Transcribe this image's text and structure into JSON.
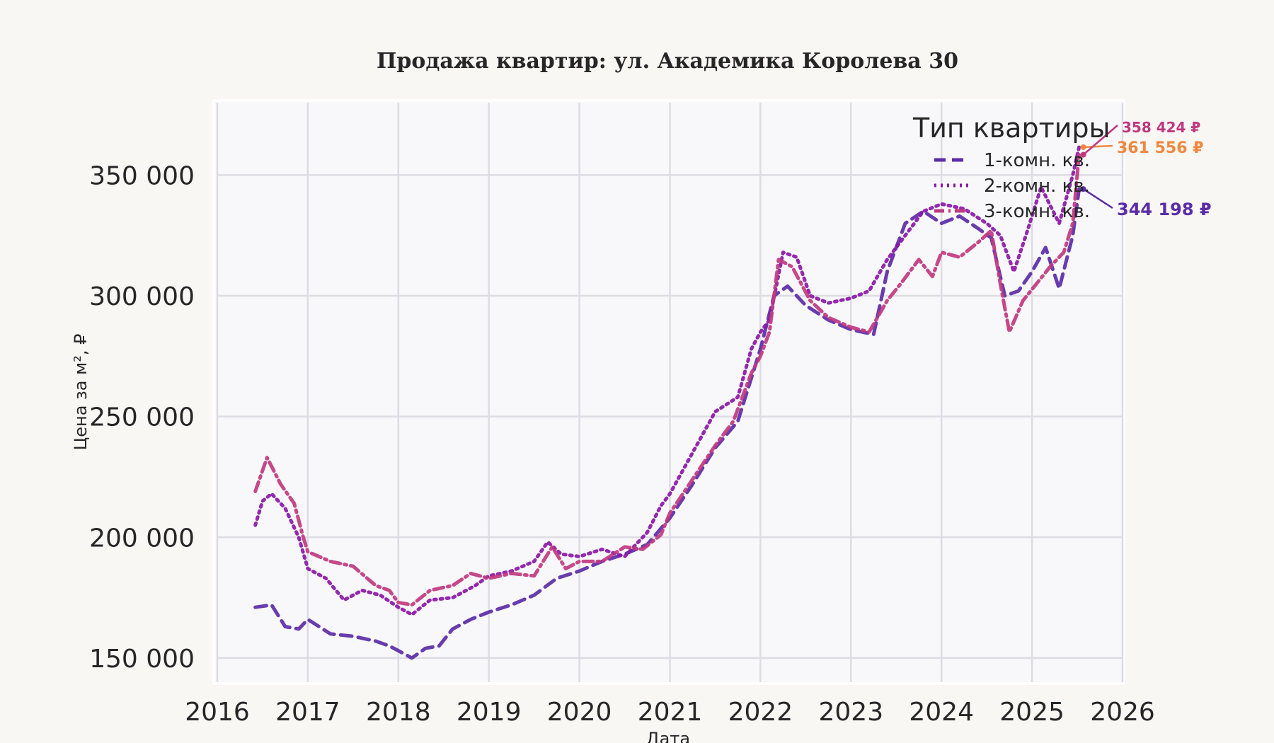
{
  "chart_data": {
    "type": "line",
    "title": "Продажа квартир: ул. Академика Королева 30",
    "xlabel": "Дата",
    "ylabel": "Цена за м², ₽",
    "xlim": [
      2016,
      2026
    ],
    "ylim": [
      140000,
      380000
    ],
    "x_ticks": [
      "2016",
      "2017",
      "2018",
      "2019",
      "2020",
      "2021",
      "2022",
      "2023",
      "2024",
      "2025",
      "2026"
    ],
    "y_ticks": [
      {
        "value": 150000,
        "label": "150 000"
      },
      {
        "value": 200000,
        "label": "200 000"
      },
      {
        "value": 250000,
        "label": "250 000"
      },
      {
        "value": 300000,
        "label": "300 000"
      },
      {
        "value": 350000,
        "label": "350 000"
      }
    ],
    "grid": true,
    "legend": {
      "title": "Тип квартиры",
      "position": "top-right"
    },
    "series": [
      {
        "name": "1-комн. кв.",
        "color": "#5c2ba6",
        "style": "dashed",
        "end_label": "344 198 ₽",
        "points": [
          [
            2016.42,
            171000
          ],
          [
            2016.6,
            172000
          ],
          [
            2016.75,
            163000
          ],
          [
            2016.9,
            162000
          ],
          [
            2017.0,
            166000
          ],
          [
            2017.25,
            160000
          ],
          [
            2017.5,
            159000
          ],
          [
            2017.75,
            157000
          ],
          [
            2017.9,
            155000
          ],
          [
            2018.0,
            153000
          ],
          [
            2018.15,
            150000
          ],
          [
            2018.3,
            154000
          ],
          [
            2018.45,
            155000
          ],
          [
            2018.6,
            162000
          ],
          [
            2018.8,
            166000
          ],
          [
            2019.0,
            169000
          ],
          [
            2019.25,
            172000
          ],
          [
            2019.5,
            176000
          ],
          [
            2019.75,
            183000
          ],
          [
            2020.0,
            186000
          ],
          [
            2020.25,
            190000
          ],
          [
            2020.5,
            193000
          ],
          [
            2020.75,
            197000
          ],
          [
            2021.0,
            208000
          ],
          [
            2021.25,
            222000
          ],
          [
            2021.5,
            237000
          ],
          [
            2021.75,
            248000
          ],
          [
            2021.85,
            260000
          ],
          [
            2022.0,
            278000
          ],
          [
            2022.15,
            300000
          ],
          [
            2022.3,
            304000
          ],
          [
            2022.5,
            296000
          ],
          [
            2022.75,
            290000
          ],
          [
            2023.0,
            286000
          ],
          [
            2023.25,
            284000
          ],
          [
            2023.4,
            310000
          ],
          [
            2023.6,
            330000
          ],
          [
            2023.8,
            335000
          ],
          [
            2024.0,
            330000
          ],
          [
            2024.2,
            333000
          ],
          [
            2024.4,
            328000
          ],
          [
            2024.55,
            324000
          ],
          [
            2024.7,
            300000
          ],
          [
            2024.85,
            302000
          ],
          [
            2025.0,
            310000
          ],
          [
            2025.15,
            320000
          ],
          [
            2025.3,
            303000
          ],
          [
            2025.45,
            325000
          ],
          [
            2025.52,
            344198
          ]
        ]
      },
      {
        "name": "2-комн. кв.",
        "color": "#8a17a6",
        "style": "dotted",
        "end_label": "361 556 ₽",
        "end_label_color": "#f0883e",
        "points": [
          [
            2016.42,
            205000
          ],
          [
            2016.5,
            215000
          ],
          [
            2016.6,
            218000
          ],
          [
            2016.75,
            212000
          ],
          [
            2016.9,
            200000
          ],
          [
            2017.0,
            187000
          ],
          [
            2017.2,
            183000
          ],
          [
            2017.4,
            174000
          ],
          [
            2017.6,
            178000
          ],
          [
            2017.8,
            176000
          ],
          [
            2018.0,
            171000
          ],
          [
            2018.15,
            168000
          ],
          [
            2018.35,
            174000
          ],
          [
            2018.6,
            175000
          ],
          [
            2018.85,
            180000
          ],
          [
            2019.0,
            184000
          ],
          [
            2019.25,
            186000
          ],
          [
            2019.5,
            190000
          ],
          [
            2019.65,
            198000
          ],
          [
            2019.8,
            193000
          ],
          [
            2020.0,
            192000
          ],
          [
            2020.25,
            195000
          ],
          [
            2020.5,
            192000
          ],
          [
            2020.75,
            202000
          ],
          [
            2020.9,
            213000
          ],
          [
            2021.0,
            218000
          ],
          [
            2021.25,
            235000
          ],
          [
            2021.5,
            252000
          ],
          [
            2021.75,
            258000
          ],
          [
            2021.9,
            278000
          ],
          [
            2022.0,
            285000
          ],
          [
            2022.1,
            290000
          ],
          [
            2022.25,
            318000
          ],
          [
            2022.4,
            316000
          ],
          [
            2022.55,
            300000
          ],
          [
            2022.75,
            297000
          ],
          [
            2023.0,
            299000
          ],
          [
            2023.2,
            302000
          ],
          [
            2023.4,
            315000
          ],
          [
            2023.6,
            325000
          ],
          [
            2023.8,
            335000
          ],
          [
            2024.0,
            338000
          ],
          [
            2024.25,
            336000
          ],
          [
            2024.5,
            330000
          ],
          [
            2024.65,
            325000
          ],
          [
            2024.8,
            310000
          ],
          [
            2024.95,
            327000
          ],
          [
            2025.1,
            345000
          ],
          [
            2025.3,
            330000
          ],
          [
            2025.45,
            350000
          ],
          [
            2025.52,
            361556
          ]
        ]
      },
      {
        "name": "3-комн. кв.",
        "color": "#c0387f",
        "style": "dashdot",
        "end_label": "358 424 ₽",
        "points": [
          [
            2016.42,
            219000
          ],
          [
            2016.55,
            233000
          ],
          [
            2016.7,
            222000
          ],
          [
            2016.85,
            214000
          ],
          [
            2016.95,
            200000
          ],
          [
            2017.0,
            194000
          ],
          [
            2017.25,
            190000
          ],
          [
            2017.5,
            188000
          ],
          [
            2017.75,
            180000
          ],
          [
            2017.9,
            178000
          ],
          [
            2018.0,
            173000
          ],
          [
            2018.15,
            172000
          ],
          [
            2018.35,
            178000
          ],
          [
            2018.6,
            180000
          ],
          [
            2018.8,
            185000
          ],
          [
            2019.0,
            183000
          ],
          [
            2019.25,
            185000
          ],
          [
            2019.5,
            184000
          ],
          [
            2019.7,
            196000
          ],
          [
            2019.85,
            187000
          ],
          [
            2020.0,
            190000
          ],
          [
            2020.25,
            190000
          ],
          [
            2020.5,
            196000
          ],
          [
            2020.7,
            195000
          ],
          [
            2020.9,
            201000
          ],
          [
            2021.0,
            210000
          ],
          [
            2021.25,
            224000
          ],
          [
            2021.5,
            238000
          ],
          [
            2021.7,
            248000
          ],
          [
            2021.9,
            268000
          ],
          [
            2022.0,
            275000
          ],
          [
            2022.1,
            285000
          ],
          [
            2022.2,
            315000
          ],
          [
            2022.35,
            312000
          ],
          [
            2022.55,
            298000
          ],
          [
            2022.75,
            291000
          ],
          [
            2023.0,
            287000
          ],
          [
            2023.2,
            285000
          ],
          [
            2023.4,
            298000
          ],
          [
            2023.55,
            305000
          ],
          [
            2023.75,
            315000
          ],
          [
            2023.9,
            308000
          ],
          [
            2024.0,
            318000
          ],
          [
            2024.2,
            316000
          ],
          [
            2024.4,
            322000
          ],
          [
            2024.55,
            327000
          ],
          [
            2024.65,
            305000
          ],
          [
            2024.75,
            285000
          ],
          [
            2024.9,
            298000
          ],
          [
            2025.05,
            305000
          ],
          [
            2025.2,
            312000
          ],
          [
            2025.35,
            318000
          ],
          [
            2025.45,
            330000
          ],
          [
            2025.52,
            358424
          ]
        ]
      }
    ]
  }
}
